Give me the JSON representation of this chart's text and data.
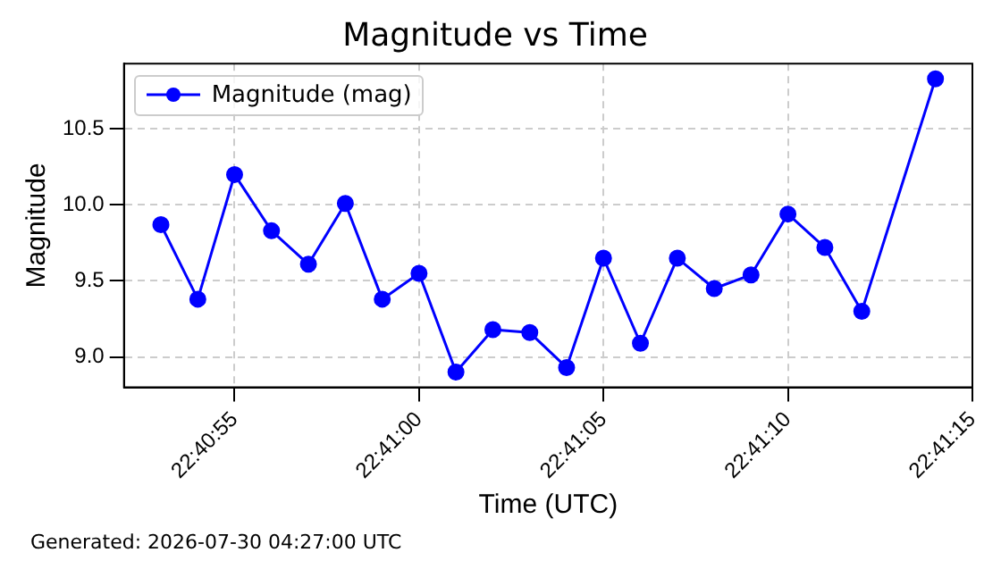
{
  "chart_data": {
    "type": "line",
    "title": "Magnitude vs Time",
    "xlabel": "Time (UTC)",
    "ylabel": "Magnitude",
    "x": [
      22.681389,
      22.681667,
      22.681944,
      22.682222,
      22.6825,
      22.682778,
      22.683056,
      22.683333,
      22.683611,
      22.683889,
      22.684167,
      22.684444,
      22.684722,
      22.685,
      22.685278,
      22.685556,
      22.685833,
      22.686111,
      22.686389,
      22.686667,
      22.687222
    ],
    "series": [
      {
        "name": "Magnitude (mag)",
        "color": "#0000ff",
        "values": [
          9.87,
          9.38,
          10.2,
          9.83,
          9.61,
          10.01,
          9.38,
          9.55,
          8.9,
          9.18,
          9.16,
          8.93,
          9.65,
          9.09,
          9.65,
          9.45,
          9.54,
          9.94,
          9.72,
          9.3,
          10.83
        ]
      }
    ],
    "xlim": [
      22.681111,
      22.6875
    ],
    "xticks": [
      {
        "value": 22.681944,
        "label": "22:40:55"
      },
      {
        "value": 22.683333,
        "label": "22:41:00"
      },
      {
        "value": 22.684722,
        "label": "22:41:05"
      },
      {
        "value": 22.686111,
        "label": "22:41:10"
      },
      {
        "value": 22.6875,
        "label": "22:41:15"
      }
    ],
    "ylim": [
      8.8,
      10.93
    ],
    "yticks": [
      {
        "value": 9,
        "label": "9.0"
      },
      {
        "value": 9.5,
        "label": "9.5"
      },
      {
        "value": 10,
        "label": "10.0"
      },
      {
        "value": 10.5,
        "label": "10.5"
      }
    ],
    "grid": true,
    "legend": "top left",
    "marker": "circle",
    "line_style": "solid",
    "annotations": [
      "Generated: 2026-07-30 04:27:00 UTC"
    ]
  }
}
